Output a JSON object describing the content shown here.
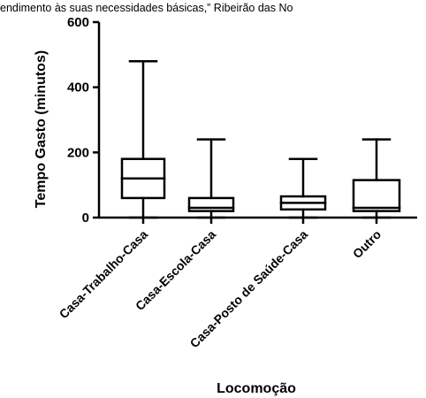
{
  "header_text": "endimento às suas necessidades básicas,” Ribeirão das No",
  "chart_data": {
    "type": "boxplot",
    "xlabel": "Locomoção",
    "ylabel": "Tempo Gasto (minutos)",
    "ylim": [
      0,
      600
    ],
    "yticks": [
      0,
      200,
      400,
      600
    ],
    "categories": [
      "Casa-Trabalho-Casa",
      "Casa-Escola-Casa",
      "Casa-Posto de Saúde-Casa",
      "Outro"
    ],
    "boxes": [
      {
        "min": 0,
        "q1": 60,
        "median": 120,
        "q3": 180,
        "max": 480
      },
      {
        "min": 0,
        "q1": 20,
        "median": 30,
        "q3": 60,
        "max": 240
      },
      {
        "min": 0,
        "q1": 25,
        "median": 45,
        "q3": 65,
        "max": 180
      },
      {
        "min": 0,
        "q1": 20,
        "median": 30,
        "q3": 115,
        "max": 240
      }
    ],
    "grid": false
  }
}
